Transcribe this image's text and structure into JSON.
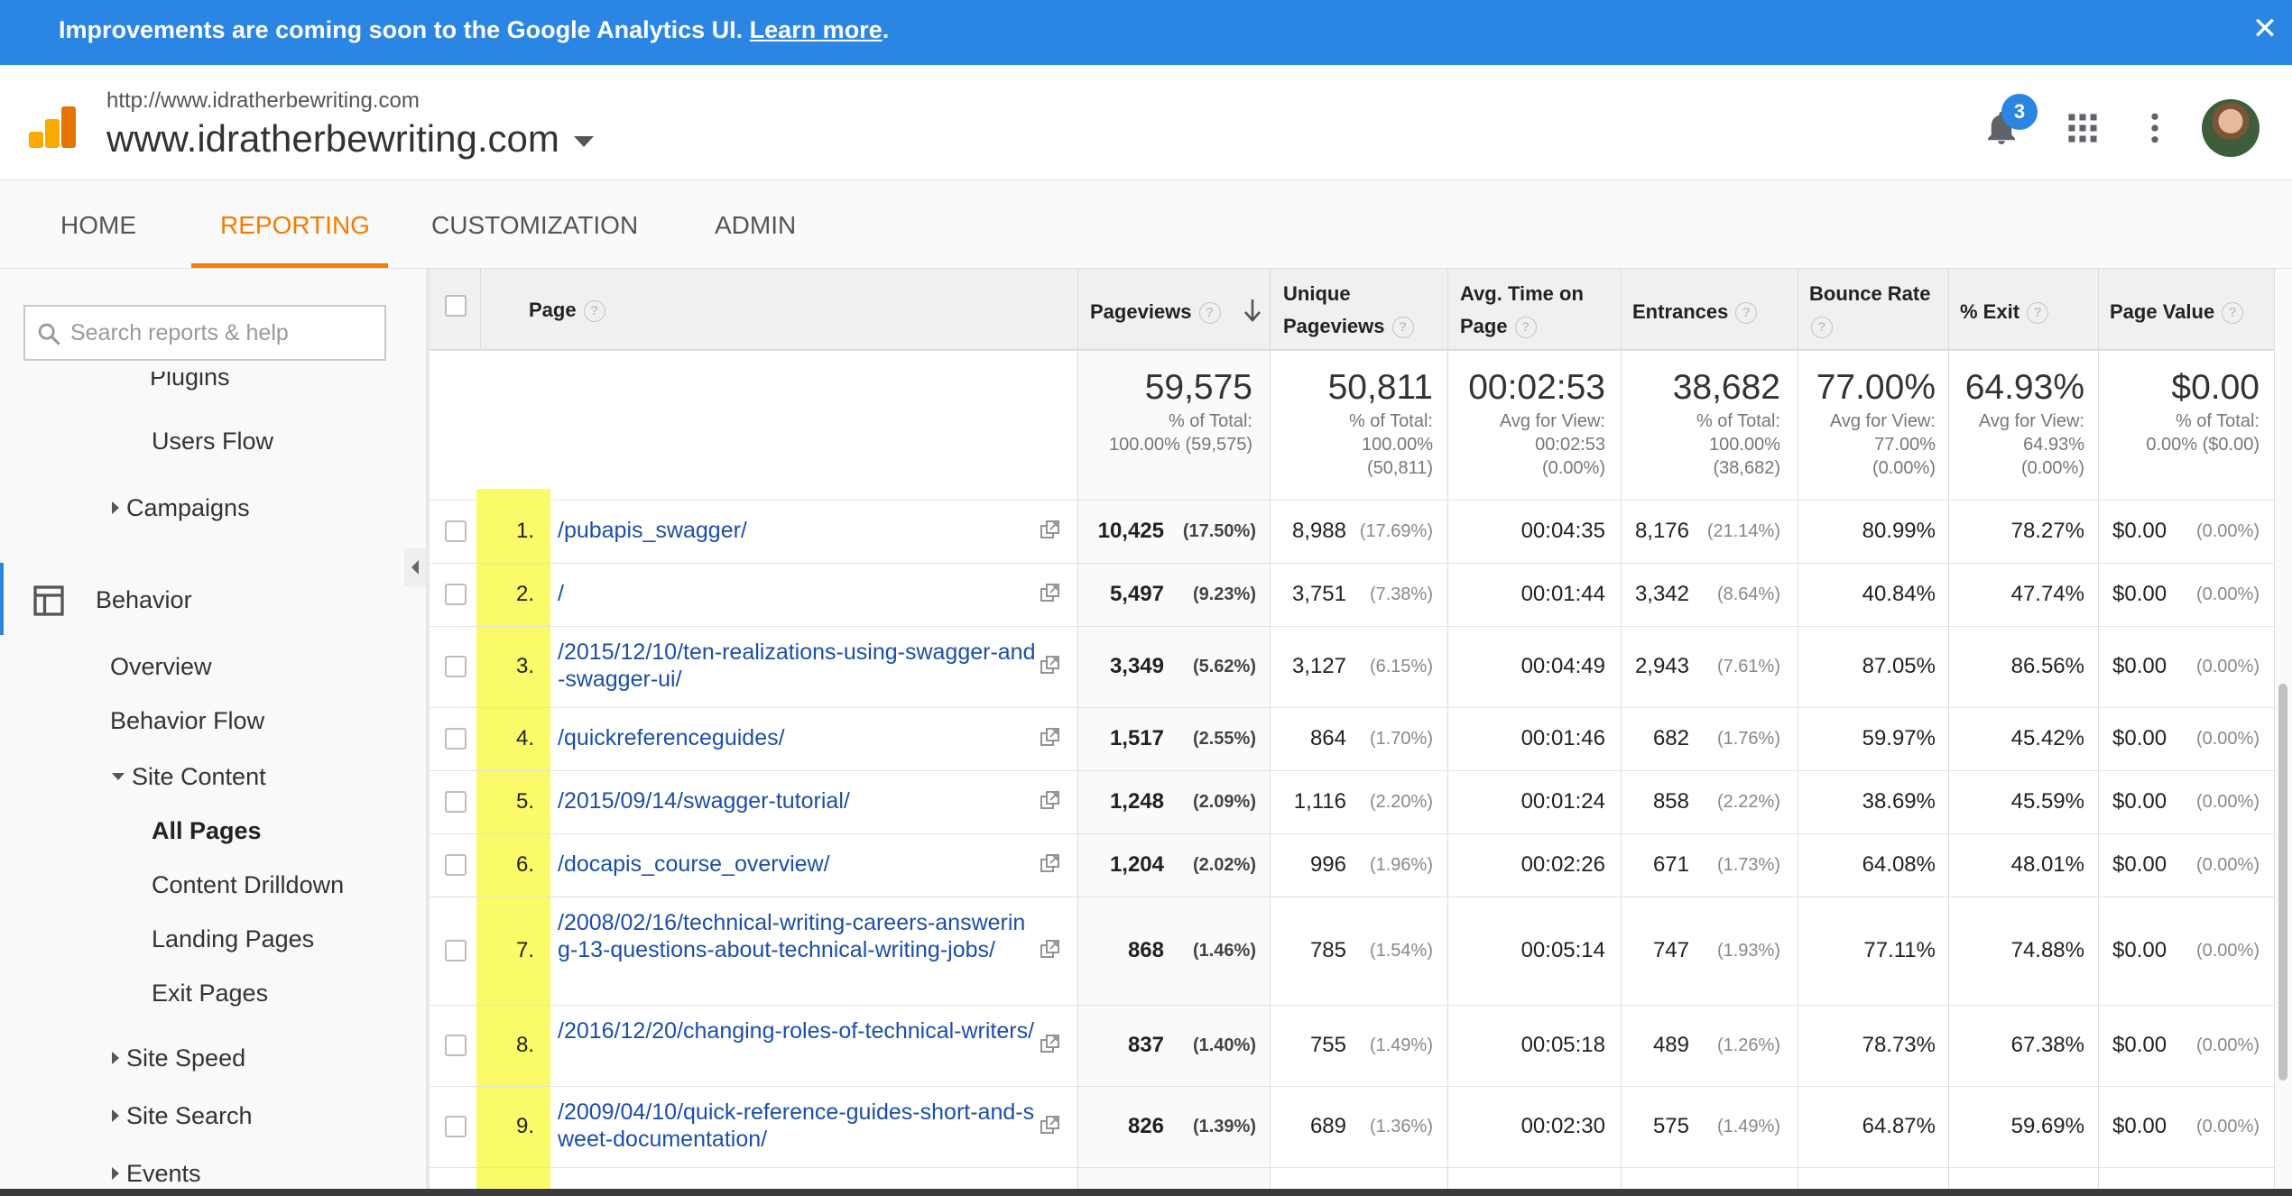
{
  "banner": {
    "text": "Improvements are coming soon to the Google Analytics UI.",
    "link": "Learn more",
    "end": ".",
    "close": "✕"
  },
  "header": {
    "property_url": "http://www.idratherbewriting.com",
    "property_name": "www.idratherbewriting.com",
    "notifications": "3"
  },
  "nav": {
    "tabs": [
      "HOME",
      "REPORTING",
      "CUSTOMIZATION",
      "ADMIN"
    ],
    "active": "REPORTING"
  },
  "sidebar": {
    "search_placeholder": "Search reports & help",
    "clipped_item": "Plugins",
    "users_flow": "Users Flow",
    "campaigns": "Campaigns",
    "behavior": "Behavior",
    "overview": "Overview",
    "behavior_flow": "Behavior Flow",
    "site_content": "Site Content",
    "all_pages": "All Pages",
    "content_drilldown": "Content Drilldown",
    "landing_pages": "Landing Pages",
    "exit_pages": "Exit Pages",
    "site_speed": "Site Speed",
    "site_search": "Site Search",
    "events": "Events"
  },
  "table": {
    "headers": {
      "page": "Page",
      "pageviews": "Pageviews",
      "unique_1": "Unique",
      "unique_2": "Pageviews",
      "avgtime_1": "Avg. Time on",
      "avgtime_2": "Page",
      "entrances": "Entrances",
      "bounce": "Bounce Rate",
      "exit": "% Exit",
      "value": "Page Value",
      "help": "?"
    },
    "totals": {
      "pageviews": {
        "value": "59,575",
        "l1": "% of Total:",
        "l2": "100.00% (59,575)"
      },
      "unique": {
        "value": "50,811",
        "l1": "% of Total:",
        "l2": "100.00%",
        "l3": "(50,811)"
      },
      "avgtime": {
        "value": "00:02:53",
        "l1": "Avg for View:",
        "l2": "00:02:53",
        "l3": "(0.00%)"
      },
      "entrances": {
        "value": "38,682",
        "l1": "% of Total:",
        "l2": "100.00%",
        "l3": "(38,682)"
      },
      "bounce": {
        "value": "77.00%",
        "l1": "Avg for View:",
        "l2": "77.00%",
        "l3": "(0.00%)"
      },
      "exit": {
        "value": "64.93%",
        "l1": "Avg for View:",
        "l2": "64.93%",
        "l3": "(0.00%)"
      },
      "value": {
        "value": "$0.00",
        "l1": "% of Total:",
        "l2": "0.00% ($0.00)"
      }
    },
    "rows": [
      {
        "num": "1.",
        "page": "/pubapis_swagger/",
        "pv": "10,425",
        "pv_pct": "(17.50%)",
        "upv": "8,988",
        "upv_pct": "(17.69%)",
        "time": "00:04:35",
        "ent": "8,176",
        "ent_pct": "(21.14%)",
        "bounce": "80.99%",
        "exit": "78.27%",
        "val": "$0.00",
        "val_pct": "(0.00%)"
      },
      {
        "num": "2.",
        "page": "/",
        "pv": "5,497",
        "pv_pct": "(9.23%)",
        "upv": "3,751",
        "upv_pct": "(7.38%)",
        "time": "00:01:44",
        "ent": "3,342",
        "ent_pct": "(8.64%)",
        "bounce": "40.84%",
        "exit": "47.74%",
        "val": "$0.00",
        "val_pct": "(0.00%)"
      },
      {
        "num": "3.",
        "page": "/2015/12/10/ten-realizations-using-swagger-and-swagger-ui/",
        "pv": "3,349",
        "pv_pct": "(5.62%)",
        "upv": "3,127",
        "upv_pct": "(6.15%)",
        "time": "00:04:49",
        "ent": "2,943",
        "ent_pct": "(7.61%)",
        "bounce": "87.05%",
        "exit": "86.56%",
        "val": "$0.00",
        "val_pct": "(0.00%)"
      },
      {
        "num": "4.",
        "page": "/quickreferenceguides/",
        "pv": "1,517",
        "pv_pct": "(2.55%)",
        "upv": "864",
        "upv_pct": "(1.70%)",
        "time": "00:01:46",
        "ent": "682",
        "ent_pct": "(1.76%)",
        "bounce": "59.97%",
        "exit": "45.42%",
        "val": "$0.00",
        "val_pct": "(0.00%)"
      },
      {
        "num": "5.",
        "page": "/2015/09/14/swagger-tutorial/",
        "pv": "1,248",
        "pv_pct": "(2.09%)",
        "upv": "1,116",
        "upv_pct": "(2.20%)",
        "time": "00:01:24",
        "ent": "858",
        "ent_pct": "(2.22%)",
        "bounce": "38.69%",
        "exit": "45.59%",
        "val": "$0.00",
        "val_pct": "(0.00%)"
      },
      {
        "num": "6.",
        "page": "/docapis_course_overview/",
        "pv": "1,204",
        "pv_pct": "(2.02%)",
        "upv": "996",
        "upv_pct": "(1.96%)",
        "time": "00:02:26",
        "ent": "671",
        "ent_pct": "(1.73%)",
        "bounce": "64.08%",
        "exit": "48.01%",
        "val": "$0.00",
        "val_pct": "(0.00%)"
      },
      {
        "num": "7.",
        "page": "/2008/02/16/technical-writing-careers-answering-13-questions-about-technical-writing-jobs/",
        "pv": "868",
        "pv_pct": "(1.46%)",
        "upv": "785",
        "upv_pct": "(1.54%)",
        "time": "00:05:14",
        "ent": "747",
        "ent_pct": "(1.93%)",
        "bounce": "77.11%",
        "exit": "74.88%",
        "val": "$0.00",
        "val_pct": "(0.00%)"
      },
      {
        "num": "8.",
        "page": "/2016/12/20/changing-roles-of-technical-writers/",
        "pv": "837",
        "pv_pct": "(1.40%)",
        "upv": "755",
        "upv_pct": "(1.49%)",
        "time": "00:05:18",
        "ent": "489",
        "ent_pct": "(1.26%)",
        "bounce": "78.73%",
        "exit": "67.38%",
        "val": "$0.00",
        "val_pct": "(0.00%)"
      },
      {
        "num": "9.",
        "page": "/2009/04/10/quick-reference-guides-short-and-sweet-documentation/",
        "pv": "826",
        "pv_pct": "(1.39%)",
        "upv": "689",
        "upv_pct": "(1.36%)",
        "time": "00:02:30",
        "ent": "575",
        "ent_pct": "(1.49%)",
        "bounce": "64.87%",
        "exit": "59.69%",
        "val": "$0.00",
        "val_pct": "(0.00%)"
      }
    ]
  }
}
